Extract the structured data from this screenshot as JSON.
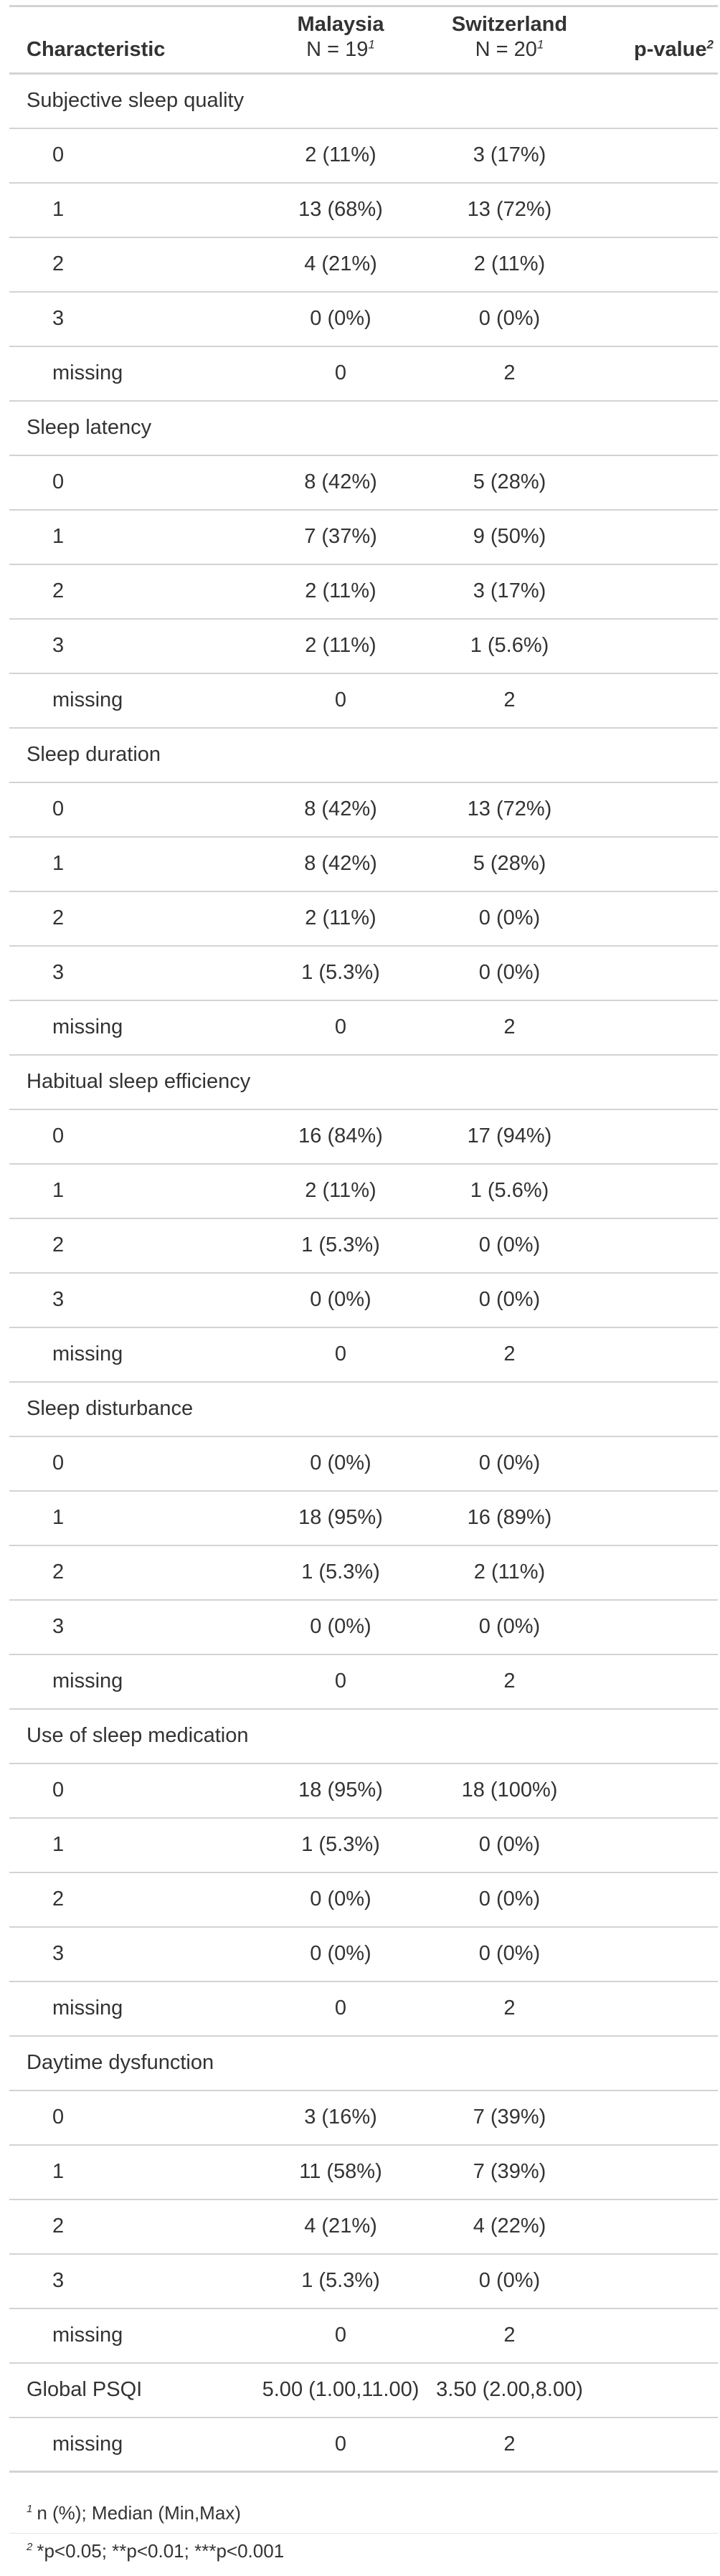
{
  "header": {
    "characteristic": "Characteristic",
    "groups": [
      {
        "name": "Malaysia",
        "n": "N = 19",
        "footnote_mark": "1"
      },
      {
        "name": "Switzerland",
        "n": "N = 20",
        "footnote_mark": "1"
      }
    ],
    "pvalue": "p-value",
    "pvalue_mark": "2"
  },
  "rows": [
    {
      "type": "variable",
      "label": "Subjective sleep quality",
      "malaysia": "",
      "switzerland": "",
      "p": ""
    },
    {
      "type": "level",
      "label": "0",
      "malaysia": "2 (11%)",
      "switzerland": "3 (17%)",
      "p": ""
    },
    {
      "type": "level",
      "label": "1",
      "malaysia": "13 (68%)",
      "switzerland": "13 (72%)",
      "p": ""
    },
    {
      "type": "level",
      "label": "2",
      "malaysia": "4 (21%)",
      "switzerland": "2 (11%)",
      "p": ""
    },
    {
      "type": "level",
      "label": "3",
      "malaysia": "0 (0%)",
      "switzerland": "0 (0%)",
      "p": ""
    },
    {
      "type": "level",
      "label": "missing",
      "malaysia": "0",
      "switzerland": "2",
      "p": ""
    },
    {
      "type": "variable",
      "label": "Sleep latency",
      "malaysia": "",
      "switzerland": "",
      "p": ""
    },
    {
      "type": "level",
      "label": "0",
      "malaysia": "8 (42%)",
      "switzerland": "5 (28%)",
      "p": ""
    },
    {
      "type": "level",
      "label": "1",
      "malaysia": "7 (37%)",
      "switzerland": "9 (50%)",
      "p": ""
    },
    {
      "type": "level",
      "label": "2",
      "malaysia": "2 (11%)",
      "switzerland": "3 (17%)",
      "p": ""
    },
    {
      "type": "level",
      "label": "3",
      "malaysia": "2 (11%)",
      "switzerland": "1 (5.6%)",
      "p": ""
    },
    {
      "type": "level",
      "label": "missing",
      "malaysia": "0",
      "switzerland": "2",
      "p": ""
    },
    {
      "type": "variable",
      "label": "Sleep duration",
      "malaysia": "",
      "switzerland": "",
      "p": ""
    },
    {
      "type": "level",
      "label": "0",
      "malaysia": "8 (42%)",
      "switzerland": "13 (72%)",
      "p": ""
    },
    {
      "type": "level",
      "label": "1",
      "malaysia": "8 (42%)",
      "switzerland": "5 (28%)",
      "p": ""
    },
    {
      "type": "level",
      "label": "2",
      "malaysia": "2 (11%)",
      "switzerland": "0 (0%)",
      "p": ""
    },
    {
      "type": "level",
      "label": "3",
      "malaysia": "1 (5.3%)",
      "switzerland": "0 (0%)",
      "p": ""
    },
    {
      "type": "level",
      "label": "missing",
      "malaysia": "0",
      "switzerland": "2",
      "p": ""
    },
    {
      "type": "variable",
      "label": "Habitual sleep efficiency",
      "malaysia": "",
      "switzerland": "",
      "p": ""
    },
    {
      "type": "level",
      "label": "0",
      "malaysia": "16 (84%)",
      "switzerland": "17 (94%)",
      "p": ""
    },
    {
      "type": "level",
      "label": "1",
      "malaysia": "2 (11%)",
      "switzerland": "1 (5.6%)",
      "p": ""
    },
    {
      "type": "level",
      "label": "2",
      "malaysia": "1 (5.3%)",
      "switzerland": "0 (0%)",
      "p": ""
    },
    {
      "type": "level",
      "label": "3",
      "malaysia": "0 (0%)",
      "switzerland": "0 (0%)",
      "p": ""
    },
    {
      "type": "level",
      "label": "missing",
      "malaysia": "0",
      "switzerland": "2",
      "p": ""
    },
    {
      "type": "variable",
      "label": "Sleep disturbance",
      "malaysia": "",
      "switzerland": "",
      "p": ""
    },
    {
      "type": "level",
      "label": "0",
      "malaysia": "0 (0%)",
      "switzerland": "0 (0%)",
      "p": ""
    },
    {
      "type": "level",
      "label": "1",
      "malaysia": "18 (95%)",
      "switzerland": "16 (89%)",
      "p": ""
    },
    {
      "type": "level",
      "label": "2",
      "malaysia": "1 (5.3%)",
      "switzerland": "2 (11%)",
      "p": ""
    },
    {
      "type": "level",
      "label": "3",
      "malaysia": "0 (0%)",
      "switzerland": "0 (0%)",
      "p": ""
    },
    {
      "type": "level",
      "label": "missing",
      "malaysia": "0",
      "switzerland": "2",
      "p": ""
    },
    {
      "type": "variable",
      "label": "Use of sleep medication",
      "malaysia": "",
      "switzerland": "",
      "p": ""
    },
    {
      "type": "level",
      "label": "0",
      "malaysia": "18 (95%)",
      "switzerland": "18 (100%)",
      "p": ""
    },
    {
      "type": "level",
      "label": "1",
      "malaysia": "1 (5.3%)",
      "switzerland": "0 (0%)",
      "p": ""
    },
    {
      "type": "level",
      "label": "2",
      "malaysia": "0 (0%)",
      "switzerland": "0 (0%)",
      "p": ""
    },
    {
      "type": "level",
      "label": "3",
      "malaysia": "0 (0%)",
      "switzerland": "0 (0%)",
      "p": ""
    },
    {
      "type": "level",
      "label": "missing",
      "malaysia": "0",
      "switzerland": "2",
      "p": ""
    },
    {
      "type": "variable",
      "label": "Daytime dysfunction",
      "malaysia": "",
      "switzerland": "",
      "p": ""
    },
    {
      "type": "level",
      "label": "0",
      "malaysia": "3 (16%)",
      "switzerland": "7 (39%)",
      "p": ""
    },
    {
      "type": "level",
      "label": "1",
      "malaysia": "11 (58%)",
      "switzerland": "7 (39%)",
      "p": ""
    },
    {
      "type": "level",
      "label": "2",
      "malaysia": "4 (21%)",
      "switzerland": "4 (22%)",
      "p": ""
    },
    {
      "type": "level",
      "label": "3",
      "malaysia": "1 (5.3%)",
      "switzerland": "0 (0%)",
      "p": ""
    },
    {
      "type": "level",
      "label": "missing",
      "malaysia": "0",
      "switzerland": "2",
      "p": ""
    },
    {
      "type": "variable",
      "label": "Global PSQI",
      "malaysia": "5.00 (1.00,11.00)",
      "switzerland": "3.50 (2.00,8.00)",
      "p": ""
    },
    {
      "type": "level",
      "label": "missing",
      "malaysia": "0",
      "switzerland": "2",
      "p": ""
    }
  ],
  "footnotes": [
    {
      "mark": "1",
      "text": "n (%); Median (Min,Max)"
    },
    {
      "mark": "2",
      "text": "*p<0.05; **p<0.01; ***p<0.001"
    }
  ]
}
